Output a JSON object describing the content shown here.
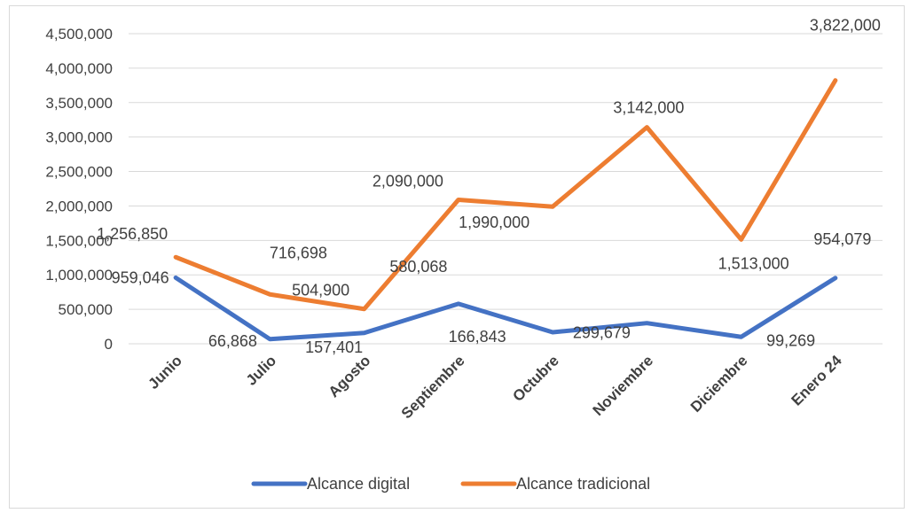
{
  "chart_data": {
    "type": "line",
    "title": "",
    "xlabel": "",
    "ylabel": "",
    "categories": [
      "Junio",
      "Julio",
      "Agosto",
      "Septiembre",
      "Octubre",
      "Noviembre",
      "Diciembre",
      "Enero 24"
    ],
    "ylim": [
      0,
      4500000
    ],
    "yticks": [
      "0",
      "500,000",
      "1,000,000",
      "1,500,000",
      "2,000,000",
      "2,500,000",
      "3,000,000",
      "3,500,000",
      "4,000,000",
      "4,500,000"
    ],
    "grid": true,
    "legend_position": "bottom",
    "series": [
      {
        "name": "Alcance digital",
        "color": "#4472C4",
        "values": [
          959046,
          66868,
          157401,
          580068,
          166843,
          299679,
          99269,
          954079
        ],
        "labels": [
          "959,046",
          "66,868",
          "157,401",
          "580,068",
          "166,843",
          "299,679",
          "99,269",
          "954,079"
        ]
      },
      {
        "name": "Alcance tradicional",
        "color": "#ED7D31",
        "values": [
          1256850,
          716698,
          504900,
          2090000,
          1990000,
          3142000,
          1513000,
          3822000
        ],
        "labels": [
          "1,256,850",
          "716,698",
          "504,900",
          "2,090,000",
          "1,990,000",
          "3,142,000",
          "1,513,000",
          "3,822,000"
        ]
      }
    ]
  }
}
